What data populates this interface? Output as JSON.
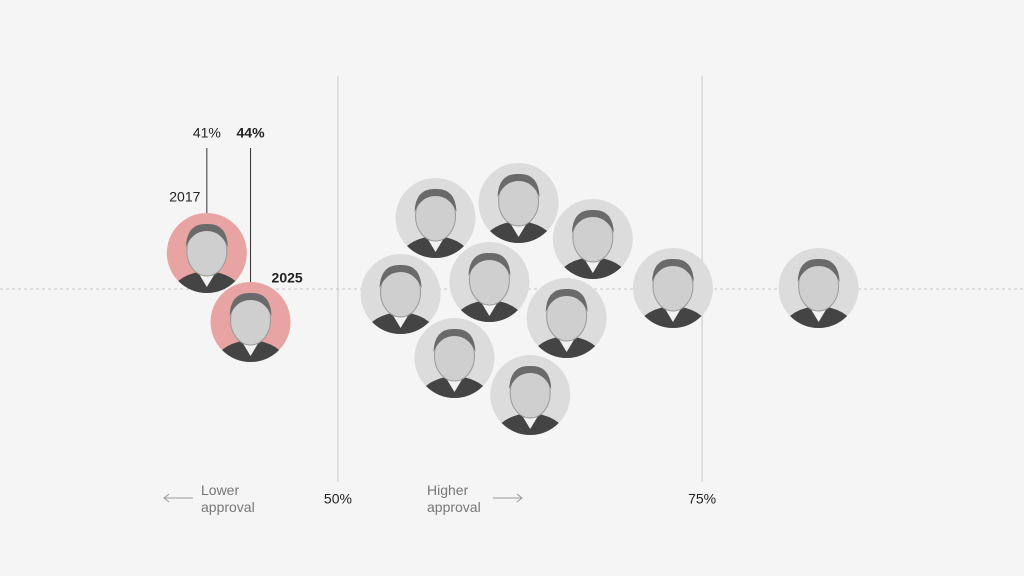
{
  "chart_data": {
    "type": "beeswarm",
    "xlim": [
      26.8,
      97.1
    ],
    "xticks": [
      {
        "value": 50,
        "label": "50%"
      },
      {
        "value": 75,
        "label": "75%"
      }
    ],
    "values": [
      56.7,
      62.4,
      67.5,
      54.3,
      60.4,
      65.7,
      58,
      63.2,
      73,
      83
    ],
    "color": "#dcdcdc",
    "highlight": {
      "values": [
        41,
        44
      ],
      "value_labels": [
        "41%",
        "44%"
      ],
      "labels": [
        "2017",
        "2025"
      ],
      "color": "#e8a3a3"
    },
    "annotations": [
      "Lower approval",
      "Higher approval"
    ]
  }
}
